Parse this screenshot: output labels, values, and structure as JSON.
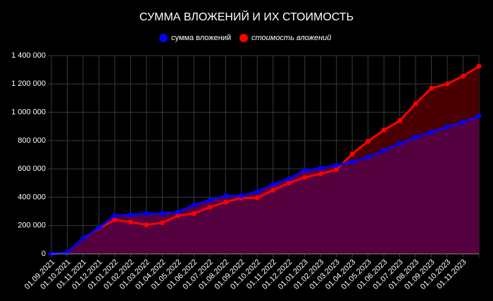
{
  "chart_data": {
    "type": "line",
    "title": "СУММА ВЛОЖЕНИЙ И ИХ СТОИМОСТЬ",
    "categories": [
      "01.09.2021",
      "01.10.2021",
      "01.11.2021",
      "01.12.2021",
      "01.01.2022",
      "01.02.2022",
      "01.03.2022",
      "01.04.2022",
      "01.05.2022",
      "01.06.2022",
      "01.07.2022",
      "01.08.2022",
      "01.09.2022",
      "01.10.2022",
      "01.11.2022",
      "01.12.2022",
      "01.01.2023",
      "01.02.2023",
      "01.03.2023",
      "01.04.2023",
      "01.05.2023",
      "01.06.2023",
      "01.07.2023",
      "01.08.2023",
      "01.09.2023",
      "01.10.2023",
      "01.11.2023",
      null
    ],
    "series": [
      {
        "name": "сумма вложений",
        "color": "#0000ff",
        "values": [
          0,
          10000,
          110000,
          185000,
          270000,
          275000,
          285000,
          285000,
          295000,
          345000,
          380000,
          410000,
          410000,
          440000,
          490000,
          530000,
          590000,
          605000,
          625000,
          650000,
          685000,
          730000,
          780000,
          825000,
          860000,
          895000,
          930000,
          975000
        ]
      },
      {
        "name": "стоимость вложений",
        "color": "#ff0000",
        "values": [
          0,
          10000,
          110000,
          180000,
          240000,
          225000,
          205000,
          220000,
          270000,
          285000,
          330000,
          365000,
          395000,
          395000,
          450000,
          500000,
          540000,
          565000,
          595000,
          705000,
          795000,
          875000,
          940000,
          1060000,
          1170000,
          1200000,
          1255000,
          1325000
        ]
      }
    ],
    "ylim": [
      0,
      1400000
    ],
    "yticks": [
      0,
      {
        "value": 200000,
        "label": "200 000"
      },
      {
        "value": 400000,
        "label": "400 000"
      },
      {
        "value": 600000,
        "label": "600 000"
      },
      {
        "value": 800000,
        "label": "800 000"
      },
      {
        "value": 1000000,
        "label": "1 000 000"
      },
      {
        "value": 1200000,
        "label": "1 200 000"
      },
      {
        "value": 1400000,
        "label": "1 400 000"
      }
    ],
    "grid": true
  }
}
